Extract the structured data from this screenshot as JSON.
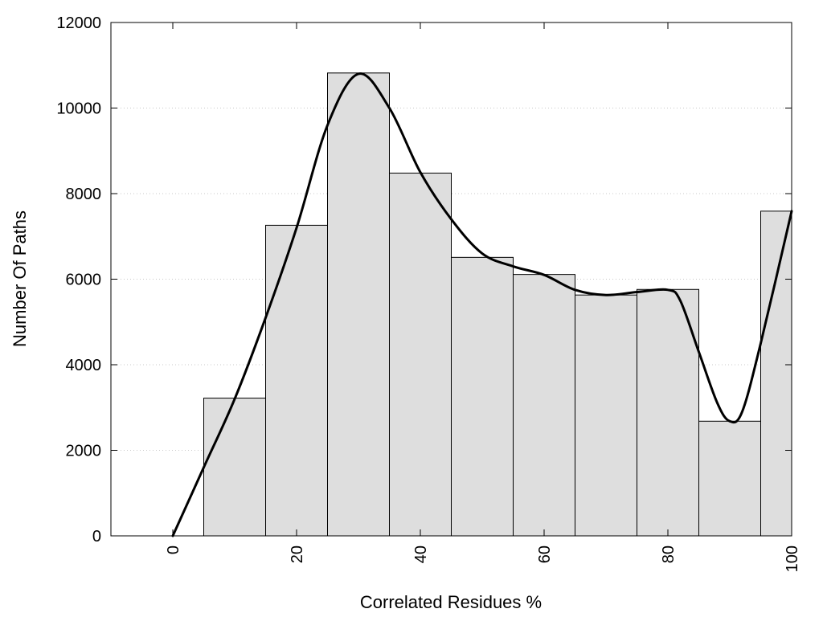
{
  "chart_data": {
    "type": "bar",
    "title": "",
    "xlabel": "Correlated Residues %",
    "ylabel": "Number Of Paths",
    "xlim": [
      -10,
      100
    ],
    "ylim": [
      0,
      12000
    ],
    "xticks": [
      0,
      20,
      40,
      60,
      80,
      100
    ],
    "yticks": [
      0,
      2000,
      4000,
      6000,
      8000,
      10000,
      12000
    ],
    "grid": "horizontal-dotted",
    "bin_width": 10,
    "bar_fill": "#dedede",
    "bars": [
      {
        "x": 10,
        "value": 3220
      },
      {
        "x": 20,
        "value": 7260
      },
      {
        "x": 30,
        "value": 10820
      },
      {
        "x": 40,
        "value": 8480
      },
      {
        "x": 50,
        "value": 6510
      },
      {
        "x": 60,
        "value": 6110
      },
      {
        "x": 70,
        "value": 5630
      },
      {
        "x": 80,
        "value": 5760
      },
      {
        "x": 90,
        "value": 2680
      },
      {
        "x": 100,
        "value": 7590
      }
    ],
    "curve": {
      "x": [
        0,
        5,
        10,
        15,
        20,
        25,
        30,
        35,
        40,
        45,
        50,
        55,
        60,
        65,
        70,
        75,
        80,
        82,
        85,
        88,
        90,
        92,
        95,
        100
      ],
      "y": [
        0,
        1600,
        3200,
        5100,
        7200,
        9600,
        10800,
        10000,
        8500,
        7400,
        6600,
        6300,
        6100,
        5750,
        5630,
        5700,
        5750,
        5500,
        4300,
        3100,
        2680,
        2900,
        4500,
        7590
      ]
    }
  }
}
